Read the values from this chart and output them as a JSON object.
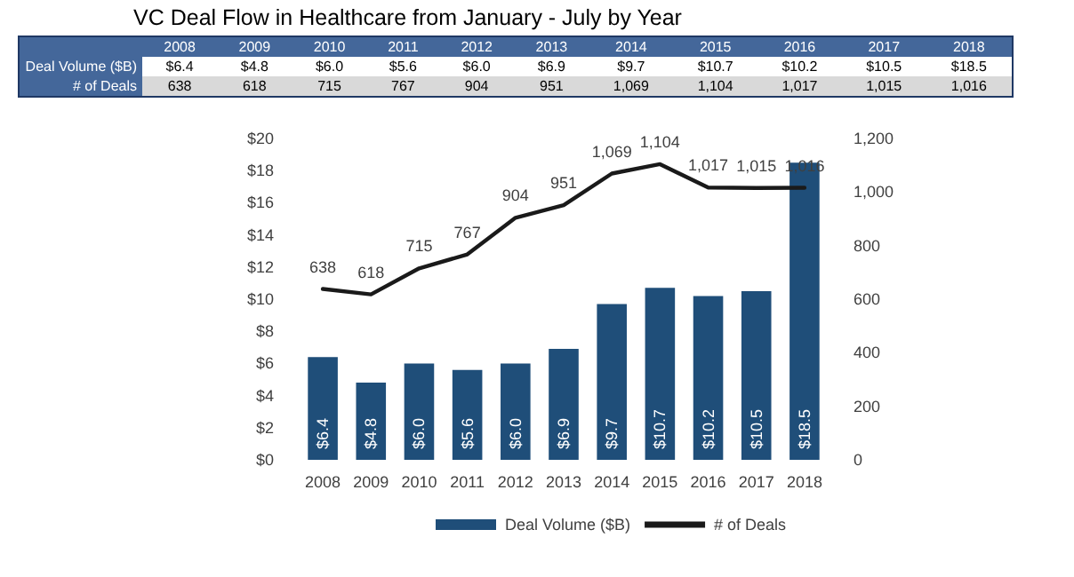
{
  "chart_data": {
    "type": "bar",
    "title": "VC Deal Flow in Healthcare from January - July by Year",
    "categories": [
      "2008",
      "2009",
      "2010",
      "2011",
      "2012",
      "2013",
      "2014",
      "2015",
      "2016",
      "2017",
      "2018"
    ],
    "series": [
      {
        "name": "Deal Volume ($B)",
        "color": "#1f4e79",
        "values": [
          6.4,
          4.8,
          6.0,
          5.6,
          6.0,
          6.9,
          9.7,
          10.7,
          10.2,
          10.5,
          18.5
        ],
        "value_labels": [
          "$6.4",
          "$4.8",
          "$6.0",
          "$5.6",
          "$6.0",
          "$6.9",
          "$9.7",
          "$10.7",
          "$10.2",
          "$10.5",
          "$18.5"
        ]
      },
      {
        "name": "# of Deals",
        "type": "line",
        "axis": "y2",
        "color": "#1a1a1a",
        "marker": "none",
        "values": [
          638,
          618,
          715,
          767,
          904,
          951,
          1069,
          1104,
          1017,
          1015,
          1016
        ],
        "value_labels": [
          "638",
          "618",
          "715",
          "767",
          "904",
          "951",
          "1,069",
          "1,104",
          "1,017",
          "1,015",
          "1,016"
        ]
      }
    ],
    "ylim": [
      0,
      20
    ],
    "yticks": [
      {
        "value": 0,
        "label": "$0"
      },
      {
        "value": 2,
        "label": "$2"
      },
      {
        "value": 4,
        "label": "$4"
      },
      {
        "value": 6,
        "label": "$6"
      },
      {
        "value": 8,
        "label": "$8"
      },
      {
        "value": 10,
        "label": "$10"
      },
      {
        "value": 12,
        "label": "$12"
      },
      {
        "value": 14,
        "label": "$14"
      },
      {
        "value": 16,
        "label": "$16"
      },
      {
        "value": 18,
        "label": "$18"
      },
      {
        "value": 20,
        "label": "$20"
      }
    ],
    "y2lim": [
      0,
      1200
    ],
    "y2ticks": [
      0,
      200,
      400,
      600,
      800,
      {
        "value": 1000,
        "label": "1,000"
      },
      {
        "value": 1200,
        "label": "1,200"
      }
    ],
    "grid": false,
    "legend": "bottom"
  }
}
